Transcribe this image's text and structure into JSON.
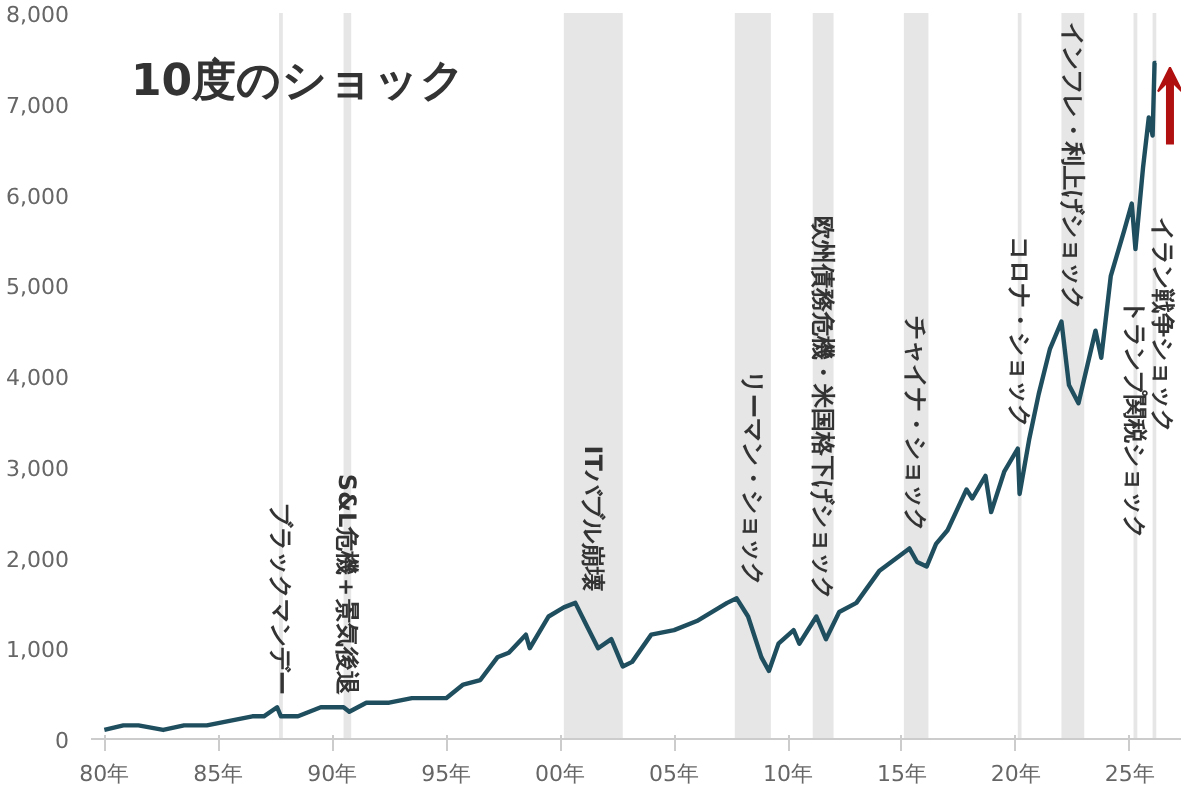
{
  "chart_data": {
    "type": "line",
    "title": "10度のショック",
    "x": [
      "1980-01",
      "1980-11",
      "1981-07",
      "1982-08",
      "1983-07",
      "1984-07",
      "1985-07",
      "1986-07",
      "1987-01",
      "1987-08",
      "1987-10",
      "1988-07",
      "1989-07",
      "1990-07",
      "1990-10",
      "1991-07",
      "1992-07",
      "1993-07",
      "1994-07",
      "1995-01",
      "1995-10",
      "1996-07",
      "1997-04",
      "1997-10",
      "1998-07",
      "1998-09",
      "1999-07",
      "2000-03",
      "2000-09",
      "2001-03",
      "2001-09",
      "2002-04",
      "2002-10",
      "2003-03",
      "2004-01",
      "2005-01",
      "2006-01",
      "2007-05",
      "2007-10",
      "2008-04",
      "2008-11",
      "2009-03",
      "2009-08",
      "2010-04",
      "2010-07",
      "2011-04",
      "2011-09",
      "2012-04",
      "2013-01",
      "2014-01",
      "2015-05",
      "2015-09",
      "2016-02",
      "2016-07",
      "2017-01",
      "2017-11",
      "2018-02",
      "2018-09",
      "2018-12",
      "2019-07",
      "2020-02",
      "2020-03",
      "2020-08",
      "2021-01",
      "2021-07",
      "2022-01",
      "2022-05",
      "2022-10",
      "2023-07",
      "2023-10",
      "2024-03",
      "2024-10",
      "2025-02",
      "2025-04",
      "2025-08",
      "2025-11",
      "2026-01",
      "2026-02",
      "2026-03"
    ],
    "series": [
      {
        "color": "#1f4e5f",
        "values": [
          100,
          150,
          150,
          100,
          150,
          150,
          200,
          250,
          250,
          350,
          250,
          250,
          350,
          350,
          300,
          400,
          400,
          450,
          450,
          450,
          600,
          650,
          900,
          950,
          1150,
          1000,
          1350,
          1450,
          1500,
          1250,
          1000,
          1100,
          800,
          850,
          1150,
          1200,
          1300,
          1500,
          1550,
          1350,
          900,
          750,
          1050,
          1200,
          1050,
          1350,
          1100,
          1400,
          1500,
          1850,
          2100,
          1950,
          1900,
          2150,
          2300,
          2750,
          2650,
          2900,
          2500,
          2950,
          3200,
          2700,
          3300,
          3800,
          4300,
          4600,
          3900,
          3700,
          4500,
          4200,
          5100,
          5600,
          5900,
          5400,
          6300,
          6850,
          6650,
          7450,
          7450
        ]
      }
    ],
    "ylim": [
      0,
      8000
    ],
    "yticks": [
      {
        "value": 0,
        "label": "0"
      },
      {
        "value": 1000,
        "label": "1,000"
      },
      {
        "value": 2000,
        "label": "2,000"
      },
      {
        "value": 3000,
        "label": "3,000"
      },
      {
        "value": 4000,
        "label": "4,000"
      },
      {
        "value": 5000,
        "label": "5,000"
      },
      {
        "value": 6000,
        "label": "6,000"
      },
      {
        "value": 7000,
        "label": "7,000"
      },
      {
        "value": 8000,
        "label": "8,000"
      }
    ],
    "xlim": [
      "1979-06",
      "2027-04"
    ],
    "xticks": [
      {
        "value": "1980",
        "label": "80年"
      },
      {
        "value": "1985",
        "label": "85年"
      },
      {
        "value": "1990",
        "label": "90年"
      },
      {
        "value": "1995",
        "label": "95年"
      },
      {
        "value": "2000",
        "label": "00年"
      },
      {
        "value": "2005",
        "label": "05年"
      },
      {
        "value": "2010",
        "label": "10年"
      },
      {
        "value": "2015",
        "label": "15年"
      },
      {
        "value": "2020",
        "label": "20年"
      },
      {
        "value": "2025",
        "label": "25年"
      }
    ],
    "grid": false,
    "bands": [
      {
        "axis": "x",
        "from": "1987-09",
        "to": "1987-11",
        "label": "ブラックマンデー",
        "color": "#e6e6e6"
      },
      {
        "axis": "x",
        "from": "1990-07",
        "to": "1990-11",
        "label": "S&L危機＋景気後退",
        "color": "#e6e6e6"
      },
      {
        "axis": "x",
        "from": "2000-03",
        "to": "2002-10",
        "label": "ITバブル崩壊",
        "color": "#e6e6e6"
      },
      {
        "axis": "x",
        "from": "2007-09",
        "to": "2009-04",
        "label": "リーマン・ショック",
        "color": "#e6e6e6"
      },
      {
        "axis": "x",
        "from": "2011-02",
        "to": "2012-01",
        "label": "欧州債務危機・米国格下げショック",
        "color": "#e6e6e6"
      },
      {
        "axis": "x",
        "from": "2015-02",
        "to": "2016-03",
        "label": "チャイナ・ショック",
        "color": "#e6e6e6"
      },
      {
        "axis": "x",
        "from": "2020-02",
        "to": "2020-04",
        "label": "コロナ・ショック",
        "color": "#e6e6e6"
      },
      {
        "axis": "x",
        "from": "2022-01",
        "to": "2023-01",
        "label": "インフレ・利上げショック",
        "color": "#e6e6e6"
      },
      {
        "axis": "x",
        "from": "2025-03",
        "to": "2025-05",
        "label": "トランプ関税ショック",
        "color": "#e6e6e6"
      },
      {
        "axis": "x",
        "from": "2026-01",
        "to": "2026-03",
        "label": "イラン戦争ショック",
        "color": "#e6e6e6"
      }
    ]
  }
}
